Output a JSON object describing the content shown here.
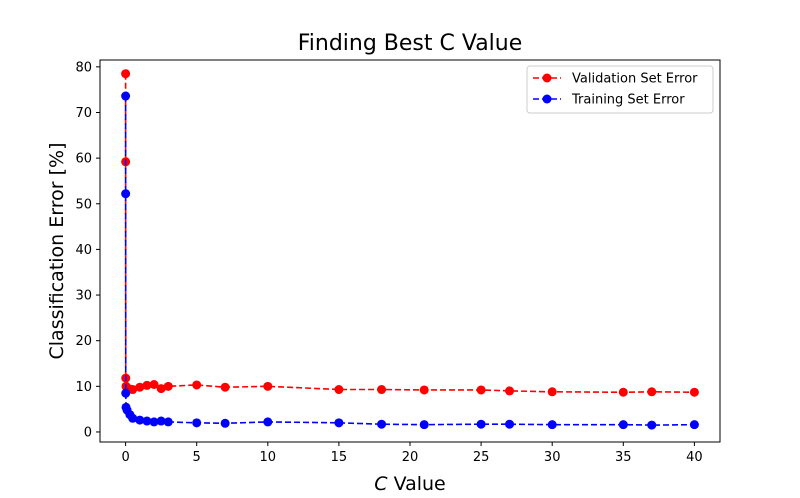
{
  "chart_data": {
    "type": "line",
    "title": "Finding Best C Value",
    "xlabel_var": "C",
    "xlabel_rest": " Value",
    "ylabel": "Classification Error [%]",
    "xlim": [
      -1.8,
      41.8
    ],
    "ylim": [
      -2.2,
      81.5
    ],
    "xticks": [
      0,
      5,
      10,
      15,
      20,
      25,
      30,
      35,
      40
    ],
    "yticks": [
      0,
      10,
      20,
      30,
      40,
      50,
      60,
      70,
      80
    ],
    "legend_position": "top-right",
    "grid": false,
    "series": [
      {
        "name": "Validation Set Error",
        "color": "#ff0000",
        "linestyle": "dashed",
        "marker": "circle",
        "points": [
          [
            0.001,
            78.5
          ],
          [
            0.003,
            59.2
          ],
          [
            0.01,
            11.8
          ],
          [
            0.03,
            10.0
          ],
          [
            0.1,
            9.7
          ],
          [
            0.3,
            9.4
          ],
          [
            0.5,
            9.3
          ],
          [
            1,
            9.8
          ],
          [
            1.5,
            10.2
          ],
          [
            2,
            10.4
          ],
          [
            2.5,
            9.5
          ],
          [
            3,
            10.0
          ],
          [
            5,
            10.3
          ],
          [
            7,
            9.8
          ],
          [
            10,
            10.0
          ],
          [
            15,
            9.3
          ],
          [
            18,
            9.3
          ],
          [
            21,
            9.2
          ],
          [
            25,
            9.2
          ],
          [
            27,
            9.0
          ],
          [
            30,
            8.8
          ],
          [
            35,
            8.7
          ],
          [
            37,
            8.8
          ],
          [
            40,
            8.7
          ]
        ]
      },
      {
        "name": "Training Set Error",
        "color": "#0000ff",
        "linestyle": "dashed",
        "marker": "circle",
        "points": [
          [
            0.001,
            73.6
          ],
          [
            0.003,
            52.2
          ],
          [
            0.01,
            8.5
          ],
          [
            0.03,
            5.4
          ],
          [
            0.1,
            4.8
          ],
          [
            0.3,
            3.8
          ],
          [
            0.5,
            3.0
          ],
          [
            1,
            2.6
          ],
          [
            1.5,
            2.4
          ],
          [
            2,
            2.2
          ],
          [
            2.5,
            2.4
          ],
          [
            3,
            2.2
          ],
          [
            5,
            2.0
          ],
          [
            7,
            1.9
          ],
          [
            10,
            2.2
          ],
          [
            15,
            2.0
          ],
          [
            18,
            1.7
          ],
          [
            21,
            1.6
          ],
          [
            25,
            1.7
          ],
          [
            27,
            1.7
          ],
          [
            30,
            1.6
          ],
          [
            35,
            1.6
          ],
          [
            37,
            1.5
          ],
          [
            40,
            1.6
          ]
        ]
      }
    ]
  }
}
